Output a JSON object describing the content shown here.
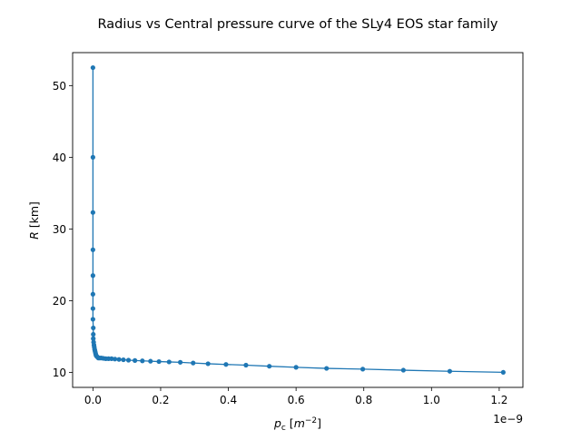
{
  "chart_data": {
    "type": "line",
    "title": "Radius vs Central pressure curve of the SLy4 EOS star family",
    "xlabel": {
      "symbol": "p",
      "sub": "c",
      "unit_open": " [",
      "unit": "m",
      "exp": "−2",
      "unit_close": "]"
    },
    "ylabel": {
      "symbol": "R",
      "unit": " [km]"
    },
    "x_offset_text": "1e−9",
    "x_scale": 1e-09,
    "xlim": [
      -0.06,
      1.27
    ],
    "ylim": [
      7.9,
      54.6
    ],
    "x_ticks": [
      0.0,
      0.2,
      0.4,
      0.6,
      0.8,
      1.0,
      1.2
    ],
    "x_tick_labels": [
      "0.0",
      "0.2",
      "0.4",
      "0.6",
      "0.8",
      "1.0",
      "1.2"
    ],
    "y_ticks": [
      10,
      20,
      30,
      40,
      50
    ],
    "y_tick_labels": [
      "10",
      "20",
      "30",
      "40",
      "50"
    ],
    "grid": false,
    "legend": "none",
    "series_color": "#1f77b4",
    "series": [
      {
        "x": [
          0.0,
          0.0,
          0.0,
          0.0,
          0.0,
          0.0,
          0.0,
          0.0,
          0.001,
          0.001,
          0.001,
          0.002,
          0.003,
          0.004,
          0.005,
          0.006,
          0.007,
          0.008,
          0.009,
          0.01,
          0.012,
          0.014,
          0.016,
          0.02,
          0.025,
          0.031,
          0.038,
          0.046,
          0.055,
          0.065,
          0.077,
          0.09,
          0.105,
          0.124,
          0.146,
          0.17,
          0.195,
          0.225,
          0.258,
          0.296,
          0.34,
          0.393,
          0.452,
          0.521,
          0.6,
          0.69,
          0.797,
          0.917,
          1.054,
          1.212
        ],
        "y": [
          52.5,
          40.0,
          32.3,
          27.1,
          23.5,
          20.9,
          18.9,
          17.4,
          16.2,
          15.3,
          14.7,
          14.2,
          13.8,
          13.5,
          13.2,
          13.0,
          12.8,
          12.6,
          12.4,
          12.3,
          12.2,
          12.1,
          12.0,
          12.0,
          12.0,
          11.95,
          11.9,
          11.9,
          11.9,
          11.85,
          11.8,
          11.75,
          11.7,
          11.65,
          11.6,
          11.55,
          11.5,
          11.45,
          11.4,
          11.3,
          11.2,
          11.1,
          11.0,
          10.85,
          10.7,
          10.55,
          10.45,
          10.3,
          10.15,
          10.0
        ]
      }
    ]
  }
}
